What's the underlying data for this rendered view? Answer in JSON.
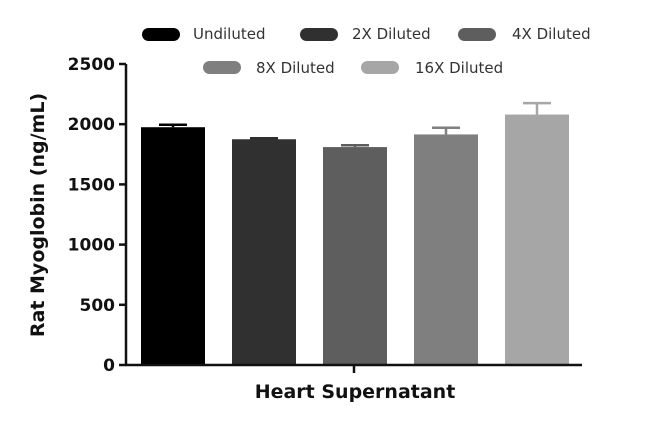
{
  "chart_data": {
    "type": "bar",
    "xlabel": "Heart Supernatant",
    "ylabel": "Rat Myoglobin (ng/mL)",
    "ylim": [
      0,
      2500
    ],
    "yticks": [
      0,
      500,
      1000,
      1500,
      2000,
      2500
    ],
    "ytick_labels": [
      "0",
      "500",
      "1000",
      "1500",
      "2000",
      "2500"
    ],
    "grid": false,
    "legend_position": "top",
    "series": [
      {
        "name": "Undiluted",
        "value": 1975,
        "error": 20,
        "color": "#000000"
      },
      {
        "name": "2X Diluted",
        "value": 1875,
        "error": 8,
        "color": "#303030"
      },
      {
        "name": "4X Diluted",
        "value": 1810,
        "error": 15,
        "color": "#5e5e5e"
      },
      {
        "name": "8X Diluted",
        "value": 1915,
        "error": 55,
        "color": "#7f7f7f"
      },
      {
        "name": "16X Diluted",
        "value": 2080,
        "error": 95,
        "color": "#a6a6a6"
      }
    ]
  }
}
